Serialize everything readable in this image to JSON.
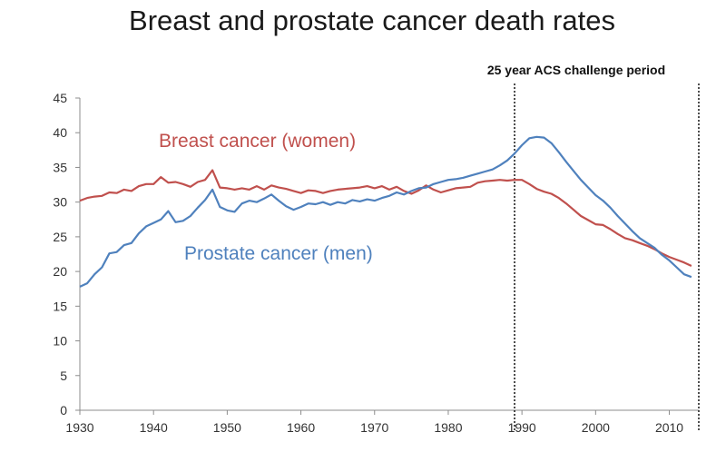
{
  "chart_data": {
    "type": "line",
    "title": "Breast and prostate cancer death rates",
    "xlabel": "",
    "ylabel": "",
    "xlim": [
      1930,
      2014
    ],
    "ylim": [
      0,
      45
    ],
    "x_ticks": [
      "1930",
      "1940",
      "1950",
      "1960",
      "1970",
      "1980",
      "1990",
      "2000",
      "2010"
    ],
    "y_ticks": [
      "0",
      "5",
      "10",
      "15",
      "20",
      "25",
      "30",
      "35",
      "40",
      "45"
    ],
    "grid": false,
    "legend": "none",
    "series": [
      {
        "name": "Breast cancer (women)",
        "color": "#c0504d",
        "points": [
          [
            1930,
            30.2
          ],
          [
            1931,
            30.6
          ],
          [
            1932,
            30.8
          ],
          [
            1933,
            30.9
          ],
          [
            1934,
            31.4
          ],
          [
            1935,
            31.3
          ],
          [
            1936,
            31.8
          ],
          [
            1937,
            31.6
          ],
          [
            1938,
            32.3
          ],
          [
            1939,
            32.6
          ],
          [
            1940,
            32.6
          ],
          [
            1941,
            33.6
          ],
          [
            1942,
            32.8
          ],
          [
            1943,
            32.9
          ],
          [
            1944,
            32.6
          ],
          [
            1945,
            32.2
          ],
          [
            1946,
            32.9
          ],
          [
            1947,
            33.2
          ],
          [
            1948,
            34.6
          ],
          [
            1949,
            32.1
          ],
          [
            1950,
            32.0
          ],
          [
            1951,
            31.8
          ],
          [
            1952,
            32.0
          ],
          [
            1953,
            31.8
          ],
          [
            1954,
            32.3
          ],
          [
            1955,
            31.8
          ],
          [
            1956,
            32.4
          ],
          [
            1957,
            32.1
          ],
          [
            1958,
            31.9
          ],
          [
            1959,
            31.6
          ],
          [
            1960,
            31.3
          ],
          [
            1961,
            31.7
          ],
          [
            1962,
            31.6
          ],
          [
            1963,
            31.3
          ],
          [
            1964,
            31.6
          ],
          [
            1965,
            31.8
          ],
          [
            1966,
            31.9
          ],
          [
            1967,
            32.0
          ],
          [
            1968,
            32.1
          ],
          [
            1969,
            32.3
          ],
          [
            1970,
            32.0
          ],
          [
            1971,
            32.3
          ],
          [
            1972,
            31.8
          ],
          [
            1973,
            32.2
          ],
          [
            1974,
            31.6
          ],
          [
            1975,
            31.2
          ],
          [
            1976,
            31.7
          ],
          [
            1977,
            32.4
          ],
          [
            1978,
            31.8
          ],
          [
            1979,
            31.4
          ],
          [
            1980,
            31.7
          ],
          [
            1981,
            32.0
          ],
          [
            1982,
            32.1
          ],
          [
            1983,
            32.2
          ],
          [
            1984,
            32.8
          ],
          [
            1985,
            33.0
          ],
          [
            1986,
            33.1
          ],
          [
            1987,
            33.2
          ],
          [
            1988,
            33.1
          ],
          [
            1989,
            33.2
          ],
          [
            1990,
            33.2
          ],
          [
            1991,
            32.6
          ],
          [
            1992,
            31.9
          ],
          [
            1993,
            31.5
          ],
          [
            1994,
            31.2
          ],
          [
            1995,
            30.6
          ],
          [
            1996,
            29.8
          ],
          [
            1997,
            28.9
          ],
          [
            1998,
            28.0
          ],
          [
            1999,
            27.4
          ],
          [
            2000,
            26.8
          ],
          [
            2001,
            26.7
          ],
          [
            2002,
            26.1
          ],
          [
            2003,
            25.4
          ],
          [
            2004,
            24.8
          ],
          [
            2005,
            24.5
          ],
          [
            2006,
            24.1
          ],
          [
            2007,
            23.7
          ],
          [
            2008,
            23.2
          ],
          [
            2009,
            22.6
          ],
          [
            2010,
            22.1
          ],
          [
            2011,
            21.7
          ],
          [
            2012,
            21.3
          ],
          [
            2013,
            20.8
          ]
        ]
      },
      {
        "name": "Prostate cancer (men)",
        "color": "#4f81bd",
        "points": [
          [
            1930,
            17.8
          ],
          [
            1931,
            18.3
          ],
          [
            1932,
            19.6
          ],
          [
            1933,
            20.6
          ],
          [
            1934,
            22.6
          ],
          [
            1935,
            22.8
          ],
          [
            1936,
            23.8
          ],
          [
            1937,
            24.1
          ],
          [
            1938,
            25.5
          ],
          [
            1939,
            26.5
          ],
          [
            1940,
            27.0
          ],
          [
            1941,
            27.5
          ],
          [
            1942,
            28.7
          ],
          [
            1943,
            27.1
          ],
          [
            1944,
            27.3
          ],
          [
            1945,
            28.0
          ],
          [
            1946,
            29.2
          ],
          [
            1947,
            30.3
          ],
          [
            1948,
            31.8
          ],
          [
            1949,
            29.3
          ],
          [
            1950,
            28.8
          ],
          [
            1951,
            28.6
          ],
          [
            1952,
            29.8
          ],
          [
            1953,
            30.2
          ],
          [
            1954,
            30.0
          ],
          [
            1955,
            30.5
          ],
          [
            1956,
            31.1
          ],
          [
            1957,
            30.2
          ],
          [
            1958,
            29.4
          ],
          [
            1959,
            28.9
          ],
          [
            1960,
            29.3
          ],
          [
            1961,
            29.8
          ],
          [
            1962,
            29.7
          ],
          [
            1963,
            30.0
          ],
          [
            1964,
            29.6
          ],
          [
            1965,
            30.0
          ],
          [
            1966,
            29.8
          ],
          [
            1967,
            30.3
          ],
          [
            1968,
            30.1
          ],
          [
            1969,
            30.4
          ],
          [
            1970,
            30.2
          ],
          [
            1971,
            30.6
          ],
          [
            1972,
            30.9
          ],
          [
            1973,
            31.4
          ],
          [
            1974,
            31.1
          ],
          [
            1975,
            31.6
          ],
          [
            1976,
            32.0
          ],
          [
            1977,
            32.1
          ],
          [
            1978,
            32.6
          ],
          [
            1979,
            32.9
          ],
          [
            1980,
            33.2
          ],
          [
            1981,
            33.3
          ],
          [
            1982,
            33.5
          ],
          [
            1983,
            33.8
          ],
          [
            1984,
            34.1
          ],
          [
            1985,
            34.4
          ],
          [
            1986,
            34.7
          ],
          [
            1987,
            35.3
          ],
          [
            1988,
            36.0
          ],
          [
            1989,
            37.0
          ],
          [
            1990,
            38.2
          ],
          [
            1991,
            39.2
          ],
          [
            1992,
            39.4
          ],
          [
            1993,
            39.3
          ],
          [
            1994,
            38.5
          ],
          [
            1995,
            37.2
          ],
          [
            1996,
            35.8
          ],
          [
            1997,
            34.5
          ],
          [
            1998,
            33.2
          ],
          [
            1999,
            32.1
          ],
          [
            2000,
            31.0
          ],
          [
            2001,
            30.2
          ],
          [
            2002,
            29.2
          ],
          [
            2003,
            28.0
          ],
          [
            2004,
            26.9
          ],
          [
            2005,
            25.8
          ],
          [
            2006,
            24.8
          ],
          [
            2007,
            24.1
          ],
          [
            2008,
            23.4
          ],
          [
            2009,
            22.4
          ],
          [
            2010,
            21.6
          ],
          [
            2011,
            20.6
          ],
          [
            2012,
            19.6
          ],
          [
            2013,
            19.2
          ]
        ]
      }
    ],
    "annotations": {
      "period_label": "25 year ACS challenge period",
      "period_start": 1989,
      "period_end": 2014
    }
  }
}
